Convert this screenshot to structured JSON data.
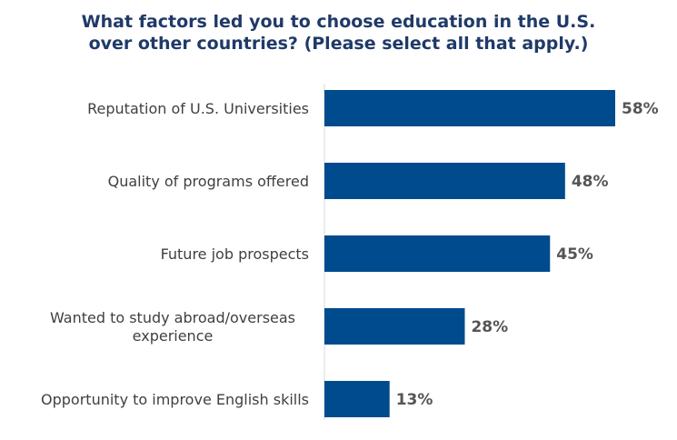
{
  "chart_data": {
    "type": "bar",
    "orientation": "horizontal",
    "title": "What factors led you to choose education in the U.S. over other countries? (Please select all that apply.)",
    "title_lines": [
      "What factors led you to choose education in the U.S.",
      "over other countries? (Please select all that apply.)"
    ],
    "categories": [
      "Reputation of U.S. Universities",
      "Quality of programs offered",
      "Future job prospects",
      "Wanted to study abroad/overseas experience",
      "Opportunity to improve English skills"
    ],
    "category_lines": [
      [
        "Reputation of U.S. Universities"
      ],
      [
        "Quality of programs offered"
      ],
      [
        "Future job prospects"
      ],
      [
        "Wanted to study abroad/overseas",
        "experience"
      ],
      [
        "Opportunity to improve English skills"
      ]
    ],
    "values": [
      58,
      48,
      45,
      28,
      13
    ],
    "value_labels": [
      "58%",
      "48%",
      "45%",
      "28%",
      "13%"
    ],
    "unit": "%",
    "xlim": [
      0,
      58
    ],
    "grid": false,
    "legend": "none",
    "bar_color": "#004b8d",
    "title_color": "#1f3a68",
    "axis_color": "#d9d9d9"
  }
}
